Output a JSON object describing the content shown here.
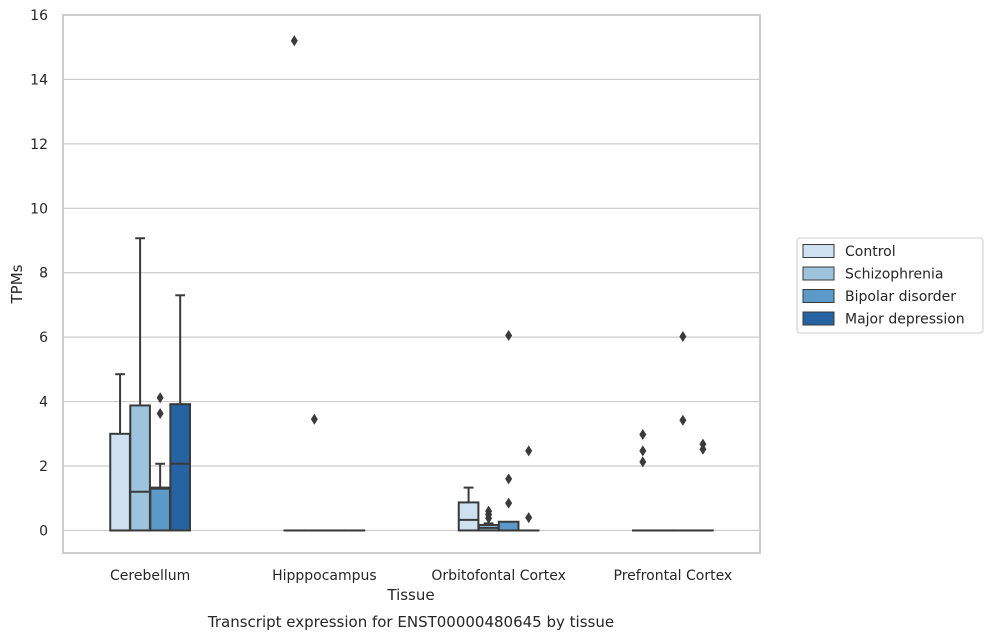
{
  "chart_data": {
    "type": "box",
    "caption": "Transcript expression for ENST00000480645 by tissue",
    "xlabel": "Tissue",
    "ylabel": "TPMs",
    "ylim": [
      -0.7,
      16
    ],
    "yticks": [
      0,
      2,
      4,
      6,
      8,
      10,
      12,
      14,
      16
    ],
    "grid": true,
    "legend_position": "right",
    "categories": [
      "Cerebellum",
      "Hipppocampus",
      "Orbitofontal Cortex",
      "Prefrontal Cortex"
    ],
    "series": [
      {
        "name": "Control",
        "color": "#cfe0f0",
        "boxes": [
          {
            "q1": 0,
            "median": 0,
            "q3": 3.0,
            "whisker_low": 0,
            "whisker_high": 4.85,
            "outliers": []
          },
          {
            "q1": 0,
            "median": 0,
            "q3": 0,
            "whisker_low": 0,
            "whisker_high": 0,
            "outliers": [
              15.2
            ]
          },
          {
            "q1": 0,
            "median": 0.33,
            "q3": 0.87,
            "whisker_low": 0,
            "whisker_high": 1.33,
            "outliers": []
          },
          {
            "q1": 0,
            "median": 0,
            "q3": 0,
            "whisker_low": 0,
            "whisker_high": 0,
            "outliers": [
              2.98,
              2.47,
              2.13
            ]
          }
        ]
      },
      {
        "name": "Schizophrenia",
        "color": "#9dc3dd",
        "boxes": [
          {
            "q1": 0,
            "median": 1.2,
            "q3": 3.88,
            "whisker_low": 0,
            "whisker_high": 9.07,
            "outliers": []
          },
          {
            "q1": 0,
            "median": 0,
            "q3": 0,
            "whisker_low": 0,
            "whisker_high": 0,
            "outliers": [
              3.45
            ]
          },
          {
            "q1": 0,
            "median": 0.08,
            "q3": 0.17,
            "whisker_low": 0,
            "whisker_high": 0.22,
            "outliers": [
              0.6,
              0.5,
              0.38
            ]
          },
          {
            "q1": 0,
            "median": 0,
            "q3": 0,
            "whisker_low": 0,
            "whisker_high": 0,
            "outliers": []
          }
        ]
      },
      {
        "name": "Bipolar disorder",
        "color": "#5b9ac8",
        "boxes": [
          {
            "q1": 0,
            "median": 1.3,
            "q3": 1.33,
            "whisker_low": 0,
            "whisker_high": 2.07,
            "outliers": [
              4.12,
              3.63
            ]
          },
          {
            "q1": 0,
            "median": 0,
            "q3": 0,
            "whisker_low": 0,
            "whisker_high": 0,
            "outliers": []
          },
          {
            "q1": 0,
            "median": 0,
            "q3": 0.27,
            "whisker_low": 0,
            "whisker_high": 0.27,
            "outliers": [
              6.05,
              1.6,
              0.85
            ]
          },
          {
            "q1": 0,
            "median": 0,
            "q3": 0,
            "whisker_low": 0,
            "whisker_high": 0,
            "outliers": [
              6.02,
              3.42
            ]
          }
        ]
      },
      {
        "name": "Major depression",
        "color": "#2563a2",
        "boxes": [
          {
            "q1": 0,
            "median": 2.07,
            "q3": 3.92,
            "whisker_low": 0,
            "whisker_high": 7.3,
            "outliers": []
          },
          {
            "q1": 0,
            "median": 0,
            "q3": 0,
            "whisker_low": 0,
            "whisker_high": 0,
            "outliers": []
          },
          {
            "q1": 0,
            "median": 0,
            "q3": 0,
            "whisker_low": 0,
            "whisker_high": 0,
            "outliers": [
              2.47,
              0.4
            ]
          },
          {
            "q1": 0,
            "median": 0,
            "q3": 0,
            "whisker_low": 0,
            "whisker_high": 0,
            "outliers": [
              2.68,
              2.52
            ]
          }
        ]
      }
    ]
  }
}
